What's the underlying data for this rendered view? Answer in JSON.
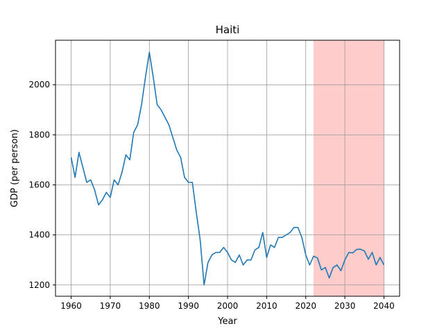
{
  "chart_data": {
    "type": "line",
    "title": "Haiti",
    "xlabel": "Year",
    "ylabel": "GDP (per person)",
    "xlim": [
      1956,
      2044
    ],
    "ylim": [
      1155,
      2178
    ],
    "xticks": [
      1960,
      1970,
      1980,
      1990,
      2000,
      2010,
      2020,
      2030,
      2040
    ],
    "yticks": [
      1200,
      1400,
      1600,
      1800,
      2000
    ],
    "grid": true,
    "line_color": "#1f77b4",
    "highlight": {
      "x_start": 2022,
      "x_end": 2040,
      "color": "#ffcccc"
    },
    "series": [
      {
        "x": [
          1960,
          1961,
          1962,
          1963,
          1964,
          1965,
          1966,
          1967,
          1968,
          1969,
          1970,
          1971,
          1972,
          1973,
          1974,
          1975,
          1976,
          1977,
          1978,
          1979,
          1980,
          1981,
          1982,
          1983,
          1984,
          1985,
          1986,
          1987,
          1988,
          1989,
          1990,
          1991,
          1992,
          1993,
          1994,
          1995,
          1996,
          1997,
          1998,
          1999,
          2000,
          2001,
          2002,
          2003,
          2004,
          2005,
          2006,
          2007,
          2008,
          2009,
          2010,
          2011,
          2012,
          2013,
          2014,
          2015,
          2016,
          2017,
          2018,
          2019,
          2020,
          2021,
          2022,
          2023,
          2024,
          2025,
          2026,
          2027,
          2028,
          2029,
          2030,
          2031,
          2032,
          2033,
          2034,
          2035,
          2036,
          2037,
          2038,
          2039,
          2040
        ],
        "values": [
          1710,
          1630,
          1730,
          1670,
          1610,
          1620,
          1580,
          1520,
          1540,
          1570,
          1550,
          1620,
          1600,
          1650,
          1720,
          1700,
          1810,
          1840,
          1920,
          2030,
          2130,
          2030,
          1920,
          1900,
          1870,
          1840,
          1790,
          1740,
          1710,
          1630,
          1610,
          1610,
          1490,
          1380,
          1200,
          1290,
          1320,
          1330,
          1330,
          1350,
          1330,
          1300,
          1290,
          1320,
          1280,
          1300,
          1300,
          1340,
          1350,
          1410,
          1310,
          1360,
          1350,
          1390,
          1390,
          1400,
          1410,
          1430,
          1430,
          1390,
          1320,
          1280,
          1315,
          1308,
          1260,
          1270,
          1228,
          1270,
          1280,
          1257,
          1300,
          1330,
          1328,
          1342,
          1343,
          1336,
          1303,
          1330,
          1280,
          1310,
          1280
        ]
      }
    ]
  }
}
